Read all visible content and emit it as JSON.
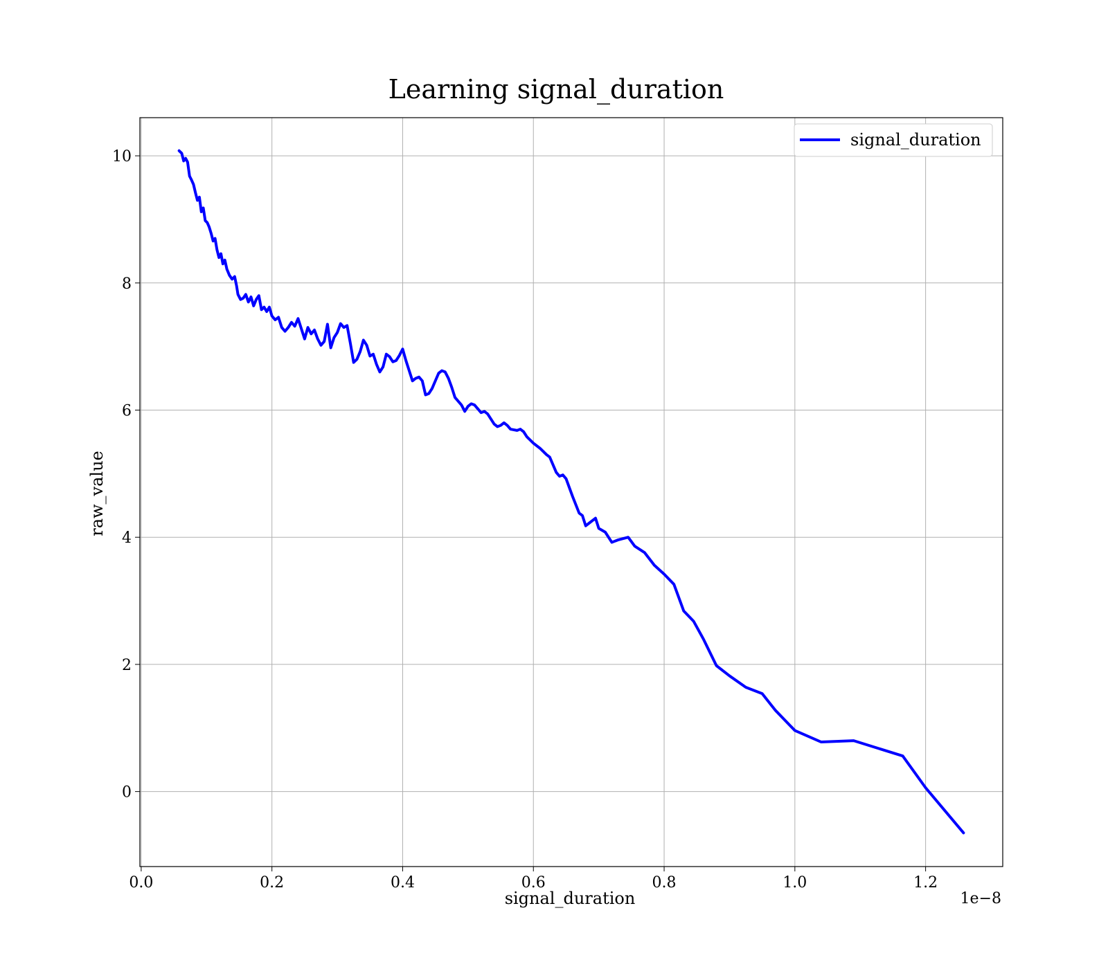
{
  "chart_data": {
    "type": "line",
    "title": "Learning signal_duration",
    "xlabel": "signal_duration",
    "ylabel": "raw_value",
    "x_offset_label": "1e−8",
    "xlim": [
      -0.002,
      1.318
    ],
    "ylim": [
      -1.18,
      10.6
    ],
    "xticks": [
      0.0,
      0.2,
      0.4,
      0.6,
      0.8,
      1.0,
      1.2
    ],
    "xtick_labels": [
      "0.0",
      "0.2",
      "0.4",
      "0.6",
      "0.8",
      "1.0",
      "1.2"
    ],
    "yticks": [
      0,
      2,
      4,
      6,
      8,
      10
    ],
    "ytick_labels": [
      "0",
      "2",
      "4",
      "6",
      "8",
      "10"
    ],
    "grid": true,
    "legend_position": "top-right",
    "line_color": "#0000ff",
    "series": [
      {
        "name": "signal_duration",
        "color": "#0000ff",
        "points": [
          [
            0.058,
            10.08
          ],
          [
            0.062,
            10.04
          ],
          [
            0.065,
            9.92
          ],
          [
            0.068,
            9.96
          ],
          [
            0.071,
            9.9
          ],
          [
            0.074,
            9.68
          ],
          [
            0.077,
            9.62
          ],
          [
            0.08,
            9.55
          ],
          [
            0.083,
            9.42
          ],
          [
            0.086,
            9.3
          ],
          [
            0.089,
            9.35
          ],
          [
            0.092,
            9.12
          ],
          [
            0.095,
            9.18
          ],
          [
            0.098,
            8.98
          ],
          [
            0.101,
            8.95
          ],
          [
            0.104,
            8.88
          ],
          [
            0.107,
            8.78
          ],
          [
            0.11,
            8.66
          ],
          [
            0.113,
            8.7
          ],
          [
            0.116,
            8.52
          ],
          [
            0.119,
            8.4
          ],
          [
            0.122,
            8.46
          ],
          [
            0.125,
            8.3
          ],
          [
            0.128,
            8.36
          ],
          [
            0.131,
            8.22
          ],
          [
            0.135,
            8.12
          ],
          [
            0.139,
            8.06
          ],
          [
            0.143,
            8.1
          ],
          [
            0.146,
            7.95
          ],
          [
            0.148,
            7.82
          ],
          [
            0.152,
            7.74
          ],
          [
            0.156,
            7.76
          ],
          [
            0.16,
            7.82
          ],
          [
            0.164,
            7.7
          ],
          [
            0.168,
            7.78
          ],
          [
            0.172,
            7.64
          ],
          [
            0.176,
            7.74
          ],
          [
            0.18,
            7.8
          ],
          [
            0.184,
            7.58
          ],
          [
            0.188,
            7.62
          ],
          [
            0.192,
            7.55
          ],
          [
            0.196,
            7.62
          ],
          [
            0.2,
            7.48
          ],
          [
            0.205,
            7.42
          ],
          [
            0.21,
            7.46
          ],
          [
            0.215,
            7.3
          ],
          [
            0.22,
            7.24
          ],
          [
            0.225,
            7.3
          ],
          [
            0.23,
            7.38
          ],
          [
            0.235,
            7.32
          ],
          [
            0.24,
            7.44
          ],
          [
            0.245,
            7.28
          ],
          [
            0.25,
            7.12
          ],
          [
            0.255,
            7.3
          ],
          [
            0.26,
            7.2
          ],
          [
            0.265,
            7.26
          ],
          [
            0.27,
            7.12
          ],
          [
            0.275,
            7.02
          ],
          [
            0.28,
            7.08
          ],
          [
            0.285,
            7.35
          ],
          [
            0.29,
            6.98
          ],
          [
            0.295,
            7.14
          ],
          [
            0.3,
            7.22
          ],
          [
            0.305,
            7.36
          ],
          [
            0.31,
            7.3
          ],
          [
            0.315,
            7.33
          ],
          [
            0.32,
            7.05
          ],
          [
            0.325,
            6.75
          ],
          [
            0.33,
            6.8
          ],
          [
            0.335,
            6.92
          ],
          [
            0.34,
            7.1
          ],
          [
            0.345,
            7.02
          ],
          [
            0.35,
            6.85
          ],
          [
            0.355,
            6.88
          ],
          [
            0.36,
            6.72
          ],
          [
            0.365,
            6.6
          ],
          [
            0.37,
            6.68
          ],
          [
            0.375,
            6.88
          ],
          [
            0.38,
            6.84
          ],
          [
            0.385,
            6.76
          ],
          [
            0.39,
            6.78
          ],
          [
            0.395,
            6.86
          ],
          [
            0.4,
            6.96
          ],
          [
            0.405,
            6.78
          ],
          [
            0.41,
            6.62
          ],
          [
            0.415,
            6.46
          ],
          [
            0.42,
            6.5
          ],
          [
            0.425,
            6.52
          ],
          [
            0.43,
            6.46
          ],
          [
            0.435,
            6.24
          ],
          [
            0.44,
            6.26
          ],
          [
            0.445,
            6.34
          ],
          [
            0.45,
            6.46
          ],
          [
            0.455,
            6.58
          ],
          [
            0.46,
            6.62
          ],
          [
            0.465,
            6.6
          ],
          [
            0.47,
            6.5
          ],
          [
            0.475,
            6.36
          ],
          [
            0.48,
            6.2
          ],
          [
            0.49,
            6.08
          ],
          [
            0.495,
            5.98
          ],
          [
            0.5,
            6.06
          ],
          [
            0.505,
            6.1
          ],
          [
            0.51,
            6.08
          ],
          [
            0.515,
            6.02
          ],
          [
            0.52,
            5.96
          ],
          [
            0.525,
            5.98
          ],
          [
            0.53,
            5.94
          ],
          [
            0.54,
            5.78
          ],
          [
            0.545,
            5.74
          ],
          [
            0.55,
            5.76
          ],
          [
            0.555,
            5.8
          ],
          [
            0.56,
            5.76
          ],
          [
            0.565,
            5.7
          ],
          [
            0.575,
            5.68
          ],
          [
            0.58,
            5.7
          ],
          [
            0.585,
            5.66
          ],
          [
            0.59,
            5.58
          ],
          [
            0.6,
            5.48
          ],
          [
            0.61,
            5.4
          ],
          [
            0.62,
            5.3
          ],
          [
            0.625,
            5.26
          ],
          [
            0.63,
            5.14
          ],
          [
            0.635,
            5.02
          ],
          [
            0.64,
            4.96
          ],
          [
            0.645,
            4.98
          ],
          [
            0.65,
            4.92
          ],
          [
            0.66,
            4.64
          ],
          [
            0.67,
            4.38
          ],
          [
            0.675,
            4.34
          ],
          [
            0.68,
            4.18
          ],
          [
            0.685,
            4.22
          ],
          [
            0.695,
            4.3
          ],
          [
            0.7,
            4.14
          ],
          [
            0.71,
            4.08
          ],
          [
            0.72,
            3.92
          ],
          [
            0.73,
            3.96
          ],
          [
            0.745,
            4.0
          ],
          [
            0.755,
            3.86
          ],
          [
            0.77,
            3.76
          ],
          [
            0.785,
            3.56
          ],
          [
            0.8,
            3.42
          ],
          [
            0.815,
            3.26
          ],
          [
            0.83,
            2.84
          ],
          [
            0.845,
            2.68
          ],
          [
            0.86,
            2.4
          ],
          [
            0.88,
            1.98
          ],
          [
            0.9,
            1.82
          ],
          [
            0.925,
            1.64
          ],
          [
            0.95,
            1.54
          ],
          [
            0.97,
            1.28
          ],
          [
            1.0,
            0.96
          ],
          [
            1.04,
            0.78
          ],
          [
            1.09,
            0.8
          ],
          [
            1.165,
            0.56
          ],
          [
            1.2,
            0.06
          ],
          [
            1.258,
            -0.65
          ]
        ]
      }
    ]
  }
}
